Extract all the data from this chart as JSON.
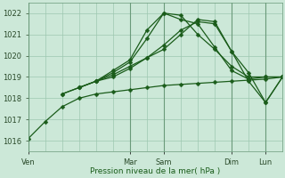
{
  "bg_color": "#cce8d8",
  "grid_color": "#9dc8b0",
  "line_color": "#1a5c1a",
  "xlabel": "Pression niveau de la mer( hPa )",
  "ylim": [
    1015.5,
    1022.5
  ],
  "yticks": [
    1016,
    1017,
    1018,
    1019,
    1020,
    1021,
    1022
  ],
  "xlim": [
    0,
    180
  ],
  "day_positions": [
    0,
    72,
    96,
    144,
    168
  ],
  "day_labels": [
    "Ven",
    "Mar",
    "Sam",
    "Dim",
    "Lun"
  ],
  "lines": [
    {
      "x": [
        0,
        12,
        24,
        36,
        48,
        60,
        72,
        84,
        96,
        108,
        120,
        132,
        144,
        156,
        168,
        180
      ],
      "y": [
        1016.1,
        1016.9,
        1017.6,
        1018.0,
        1018.2,
        1018.3,
        1018.4,
        1018.5,
        1018.6,
        1018.65,
        1018.7,
        1018.75,
        1018.8,
        1018.85,
        1018.9,
        1019.0
      ]
    },
    {
      "x": [
        24,
        36,
        48,
        60,
        72,
        84,
        96,
        108,
        120,
        132,
        144,
        156,
        168,
        180
      ],
      "y": [
        1018.2,
        1018.5,
        1018.8,
        1019.2,
        1019.7,
        1020.8,
        1022.0,
        1021.9,
        1021.0,
        1020.3,
        1019.5,
        1019.0,
        1019.0,
        1019.0
      ]
    },
    {
      "x": [
        24,
        36,
        48,
        60,
        72,
        84,
        96,
        108,
        120,
        132,
        144,
        156,
        168,
        180
      ],
      "y": [
        1018.2,
        1018.5,
        1018.8,
        1019.3,
        1019.8,
        1021.2,
        1022.0,
        1021.7,
        1021.5,
        1020.4,
        1019.3,
        1018.9,
        1019.0,
        1019.0
      ]
    },
    {
      "x": [
        36,
        48,
        60,
        72,
        84,
        96,
        108,
        120,
        132,
        144,
        156,
        168,
        180
      ],
      "y": [
        1018.5,
        1018.8,
        1019.1,
        1019.5,
        1019.9,
        1020.3,
        1021.0,
        1021.7,
        1021.6,
        1020.2,
        1018.8,
        1017.8,
        1019.0
      ]
    },
    {
      "x": [
        48,
        60,
        72,
        84,
        96,
        108,
        120,
        132,
        144,
        156,
        168,
        180
      ],
      "y": [
        1018.8,
        1019.0,
        1019.4,
        1019.9,
        1020.5,
        1021.2,
        1021.6,
        1021.5,
        1020.2,
        1019.2,
        1017.8,
        1019.0
      ]
    }
  ]
}
